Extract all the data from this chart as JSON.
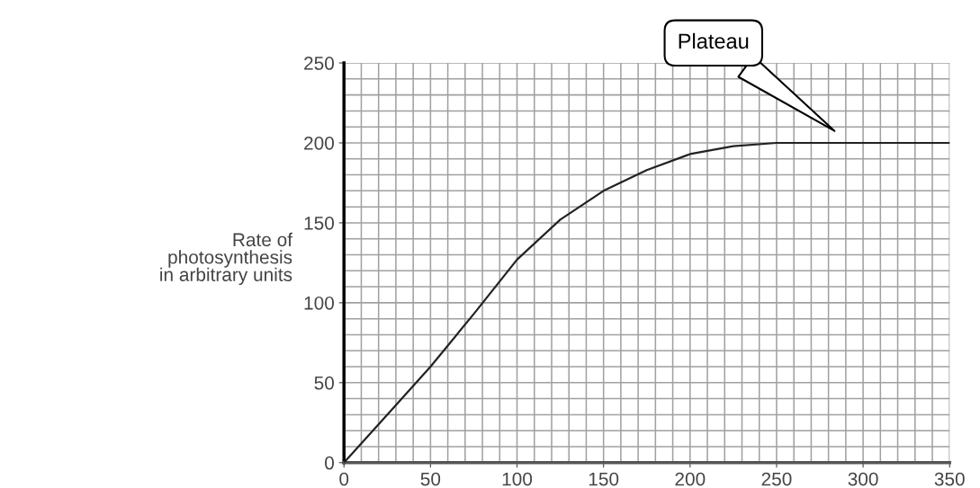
{
  "chart_data": {
    "type": "line",
    "ylabel": "Rate of\nphotosynthesis\nin arbitrary units",
    "x": [
      0,
      25,
      50,
      75,
      100,
      125,
      150,
      175,
      200,
      225,
      250,
      300,
      350
    ],
    "series": [
      {
        "color": "#222222",
        "values": [
          0,
          30,
          60,
          93,
          127,
          152,
          170,
          183,
          193,
          198,
          200,
          200,
          200
        ]
      }
    ],
    "xlim": [
      0,
      350
    ],
    "xticks": [
      0,
      50,
      100,
      150,
      200,
      250,
      300,
      350
    ],
    "ylim": [
      0,
      250
    ],
    "yticks": [
      0,
      50,
      100,
      150,
      200,
      250
    ],
    "grid": true,
    "annotations": [
      "Plateau"
    ]
  }
}
